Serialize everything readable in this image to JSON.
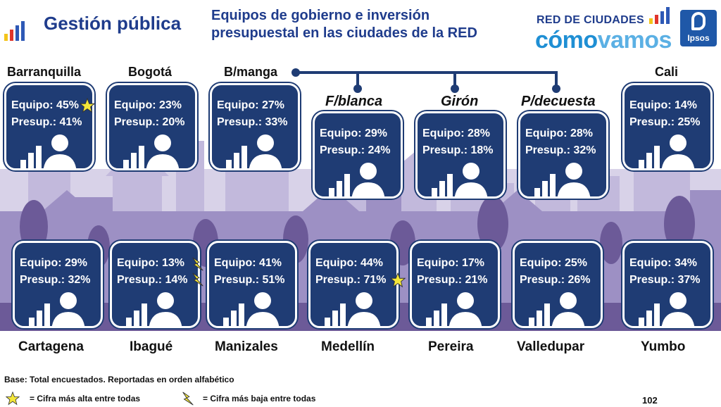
{
  "header": {
    "title": "Gestión pública",
    "subtitle_line1": "Equipos de gobierno e inversión",
    "subtitle_line2": "presupuestal en las ciudades de la RED",
    "brand_top": "RED DE CIUDADES",
    "brand_como": "cómo",
    "brand_vamos": "vamos",
    "ipsos": "Ipsos"
  },
  "colors": {
    "card": "#1f3c74",
    "title": "#1f3c8c",
    "skyline": "#b9aed3",
    "skyline_dark": "#6c5a98",
    "star": "#f3e63a"
  },
  "labels": {
    "equipo": "Equipo:",
    "presup": "Presup.:"
  },
  "top_cities": [
    {
      "name": "Barranquilla",
      "equipo": "45%",
      "presup": "41%",
      "mark": "star"
    },
    {
      "name": "Bogotá",
      "equipo": "23%",
      "presup": "20%"
    },
    {
      "name": "B/manga",
      "equipo": "27%",
      "presup": "33%"
    },
    {
      "name": "F/blanca",
      "equipo": "29%",
      "presup": "24%"
    },
    {
      "name": "Girón",
      "equipo": "28%",
      "presup": "18%"
    },
    {
      "name": "P/decuesta",
      "equipo": "28%",
      "presup": "32%"
    },
    {
      "name": "Cali",
      "equipo": "14%",
      "presup": "25%"
    }
  ],
  "bottom_cities": [
    {
      "name": "Cartagena",
      "equipo": "29%",
      "presup": "32%"
    },
    {
      "name": "Ibagué",
      "equipo": "13%",
      "presup": "14%",
      "mark": "bolt"
    },
    {
      "name": "Manizales",
      "equipo": "41%",
      "presup": "51%"
    },
    {
      "name": "Medellín",
      "equipo": "44%",
      "presup": "71%",
      "mark": "star"
    },
    {
      "name": "Pereira",
      "equipo": "17%",
      "presup": "21%"
    },
    {
      "name": "Valledupar",
      "equipo": "25%",
      "presup": "26%"
    },
    {
      "name": "Yumbo",
      "equipo": "34%",
      "presup": "37%"
    }
  ],
  "footer": {
    "base": "Base: Total encuestados.  Reportadas en orden alfabético",
    "legend_high": "= Cifra más alta entre todas",
    "legend_low": "= Cifra más baja entre todas",
    "page": "102"
  }
}
